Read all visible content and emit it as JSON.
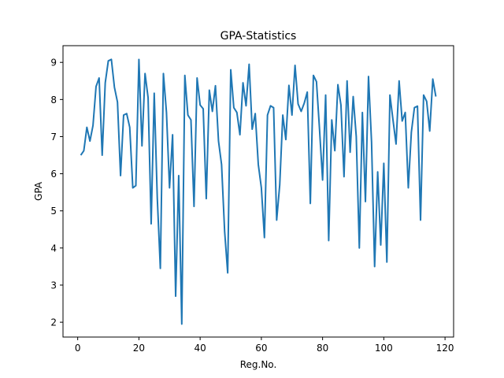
{
  "chart_data": {
    "type": "line",
    "title": "GPA-Statistics",
    "xlabel": "Reg.No.",
    "ylabel": "GPA",
    "xlim": [
      -4.8,
      122.8
    ],
    "ylim": [
      1.6,
      9.45
    ],
    "xticks": [
      0,
      20,
      40,
      60,
      80,
      100,
      120
    ],
    "yticks": [
      2,
      3,
      4,
      5,
      6,
      7,
      8,
      9
    ],
    "xtick_labels": [
      "0",
      "20",
      "40",
      "60",
      "80",
      "100",
      "120"
    ],
    "ytick_labels": [
      "2",
      "3",
      "4",
      "5",
      "6",
      "7",
      "8",
      "9"
    ],
    "grid": false,
    "legend": "none",
    "line_color": "#1f77b4",
    "series": [
      {
        "x": [
          1,
          2,
          3,
          4,
          5,
          6,
          7,
          8,
          9,
          10,
          11,
          12,
          13,
          14,
          15,
          16,
          17,
          18,
          19,
          20,
          21,
          22,
          23,
          24,
          25,
          26,
          27,
          28,
          29,
          30,
          31,
          32,
          33,
          34,
          35,
          36,
          37,
          38,
          39,
          40,
          41,
          42,
          43,
          44,
          45,
          46,
          47,
          48,
          49,
          50,
          51,
          52,
          53,
          54,
          55,
          56,
          57,
          58,
          59,
          60,
          61,
          62,
          63,
          64,
          65,
          66,
          67,
          68,
          69,
          70,
          71,
          72,
          73,
          74,
          75,
          76,
          77,
          78,
          79,
          80,
          81,
          82,
          83,
          84,
          85,
          86,
          87,
          88,
          89,
          90,
          91,
          92,
          93,
          94,
          95,
          96,
          97,
          98,
          99,
          100,
          101,
          102,
          103,
          104,
          105,
          106,
          107,
          108,
          109,
          110,
          111,
          112,
          113,
          114,
          115,
          116,
          117
        ],
        "y": [
          6.5,
          6.62,
          7.25,
          6.88,
          7.3,
          8.35,
          8.58,
          6.5,
          8.45,
          9.04,
          9.08,
          8.33,
          7.93,
          5.95,
          7.58,
          7.62,
          7.25,
          5.62,
          5.68,
          9.08,
          6.75,
          8.7,
          8.05,
          4.65,
          8.17,
          5.35,
          3.45,
          8.7,
          7.65,
          5.62,
          7.05,
          2.7,
          5.95,
          1.95,
          8.65,
          7.58,
          7.45,
          5.12,
          8.58,
          7.85,
          7.75,
          5.33,
          8.25,
          7.68,
          8.37,
          6.88,
          6.25,
          4.45,
          3.33,
          8.8,
          7.78,
          7.65,
          7.05,
          8.45,
          7.83,
          8.95,
          7.2,
          7.62,
          6.25,
          5.62,
          4.28,
          7.58,
          7.83,
          7.78,
          4.75,
          5.7,
          7.58,
          6.92,
          8.38,
          7.58,
          8.92,
          7.88,
          7.68,
          7.9,
          8.2,
          5.2,
          8.65,
          8.48,
          7.2,
          5.83,
          8.12,
          4.2,
          7.45,
          6.62,
          8.4,
          7.85,
          5.92,
          8.5,
          6.58,
          8.08,
          7.0,
          4.0,
          7.65,
          5.25,
          8.62,
          6.85,
          3.5,
          6.05,
          4.08,
          6.28,
          3.62,
          8.12,
          7.45,
          6.8,
          8.5,
          7.42,
          7.65,
          5.62,
          7.12,
          7.78,
          7.82,
          4.75,
          8.12,
          7.95,
          7.15,
          8.55,
          8.08
        ]
      }
    ]
  }
}
